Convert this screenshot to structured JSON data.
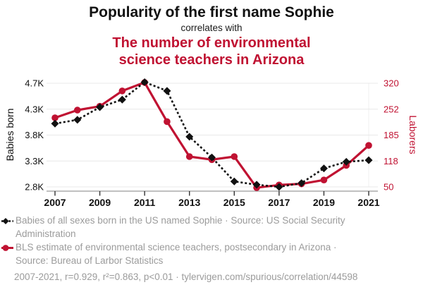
{
  "header": {
    "title": "Popularity of the first name Sophie",
    "subtitle": "correlates with",
    "title2": "The number of environmental science teachers in Arizona"
  },
  "colors": {
    "accent_red": "#c01232",
    "series_black": "#111111",
    "legend_gray": "#9b9b9b",
    "gridline": "#e8e8e8",
    "axis_line": "#9a9a9a",
    "tick_mark": "#333333"
  },
  "chart_data": {
    "type": "line",
    "x": [
      2007,
      2008,
      2009,
      2010,
      2011,
      2012,
      2013,
      2014,
      2015,
      2016,
      2017,
      2018,
      2019,
      2020,
      2021
    ],
    "x_tick_labels": [
      "2007",
      "2009",
      "2011",
      "2013",
      "2015",
      "2017",
      "2019",
      "2021"
    ],
    "left_axis": {
      "label": "Babies born",
      "tick_labels": [
        "4.7K",
        "4.3K",
        "3.8K",
        "3.3K",
        "2.8K"
      ],
      "range": [
        2800,
        4700
      ]
    },
    "right_axis": {
      "label": "Laborers",
      "tick_labels": [
        "320",
        "252",
        "185",
        "118",
        "50"
      ],
      "range": [
        50,
        320
      ]
    },
    "grid": "horizontal",
    "legend_position": "bottom",
    "series": [
      {
        "name": "Babies of all sexes born in the US named Sophie",
        "axis": "left",
        "style": "black-dashed-diamond",
        "values": [
          3960,
          4030,
          4260,
          4400,
          4720,
          4560,
          3720,
          3340,
          2900,
          2840,
          2800,
          2870,
          3140,
          3260,
          3290
        ]
      },
      {
        "name": "BLS estimate of environmental science teachers, postsecondary in Arizona",
        "axis": "right",
        "style": "red-solid-circle",
        "values": [
          230,
          250,
          260,
          300,
          322,
          220,
          129,
          121,
          129,
          48,
          55,
          58,
          68,
          106,
          158
        ]
      }
    ]
  },
  "legend": {
    "items": [
      {
        "lines": [
          "Babies of all sexes born in the US named Sophie · Source: US Social Security",
          "Administration"
        ]
      },
      {
        "lines": [
          "BLS estimate of environmental science teachers, postsecondary in Arizona ·",
          "Source: Bureau of Larbor Statistics"
        ]
      }
    ]
  },
  "footer": {
    "text": "2007-2021, r=0.929, r²=0.863, p<0.01 · tylervigen.com/spurious/correlation/44598"
  }
}
